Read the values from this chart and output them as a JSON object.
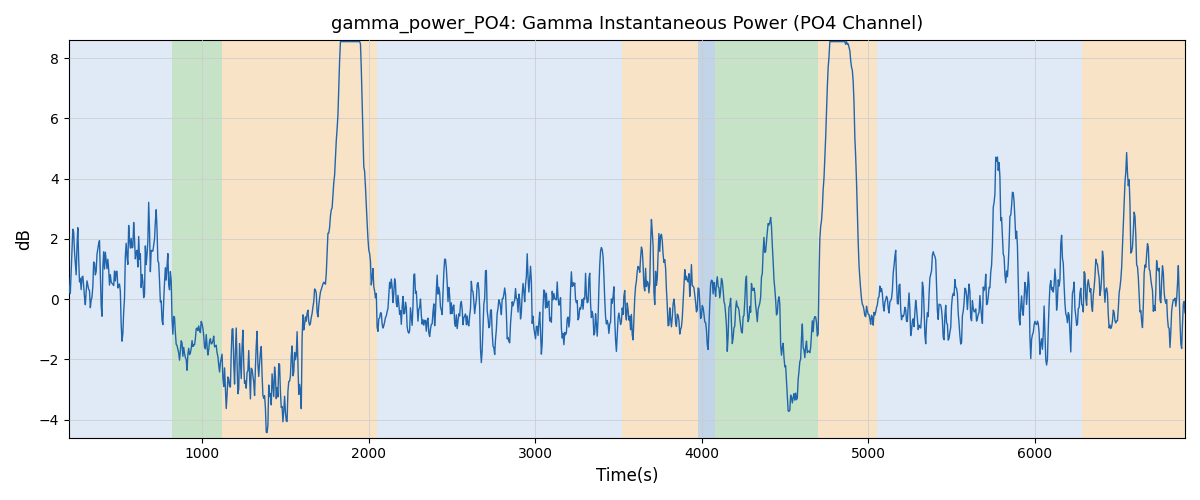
{
  "title": "gamma_power_PO4: Gamma Instantaneous Power (PO4 Channel)",
  "xlabel": "Time(s)",
  "ylabel": "dB",
  "xlim": [
    200,
    6900
  ],
  "ylim": [
    -4.6,
    8.6
  ],
  "line_color": "#2166ac",
  "line_width": 1.0,
  "background_color": "#ffffff",
  "bands": [
    {
      "xmin": 200,
      "xmax": 820,
      "color": "#aec6e8",
      "alpha": 0.38
    },
    {
      "xmin": 820,
      "xmax": 1120,
      "color": "#90c890",
      "alpha": 0.5
    },
    {
      "xmin": 1120,
      "xmax": 2050,
      "color": "#f5c890",
      "alpha": 0.5
    },
    {
      "xmin": 2050,
      "xmax": 3520,
      "color": "#aec6e8",
      "alpha": 0.38
    },
    {
      "xmin": 3520,
      "xmax": 3980,
      "color": "#f5c890",
      "alpha": 0.5
    },
    {
      "xmin": 3980,
      "xmax": 4080,
      "color": "#9ab8d8",
      "alpha": 0.6
    },
    {
      "xmin": 4080,
      "xmax": 4700,
      "color": "#90c890",
      "alpha": 0.5
    },
    {
      "xmin": 4700,
      "xmax": 5050,
      "color": "#f5c890",
      "alpha": 0.5
    },
    {
      "xmin": 5050,
      "xmax": 6280,
      "color": "#aec6e8",
      "alpha": 0.38
    },
    {
      "xmin": 6280,
      "xmax": 6900,
      "color": "#f5c890",
      "alpha": 0.5
    }
  ],
  "seed": 17,
  "n_points": 1340,
  "t_start": 200,
  "t_end": 6900
}
